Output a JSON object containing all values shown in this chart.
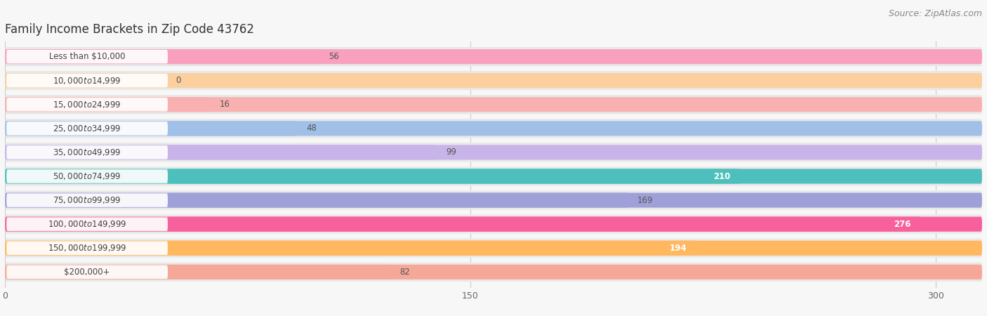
{
  "title": "Family Income Brackets in Zip Code 43762",
  "source": "Source: ZipAtlas.com",
  "categories": [
    "Less than $10,000",
    "$10,000 to $14,999",
    "$15,000 to $24,999",
    "$25,000 to $34,999",
    "$35,000 to $49,999",
    "$50,000 to $74,999",
    "$75,000 to $99,999",
    "$100,000 to $149,999",
    "$150,000 to $199,999",
    "$200,000+"
  ],
  "values": [
    56,
    0,
    16,
    48,
    99,
    210,
    169,
    276,
    194,
    82
  ],
  "bar_colors": [
    "#F9A0BE",
    "#FBCF9E",
    "#F9B0B0",
    "#A0C0E8",
    "#C8B4E8",
    "#4DBFBC",
    "#A0A0D8",
    "#F8609C",
    "#FFB860",
    "#F5A898"
  ],
  "label_colors": [
    "#555555",
    "#555555",
    "#555555",
    "#555555",
    "#555555",
    "#ffffff",
    "#555555",
    "#ffffff",
    "#ffffff",
    "#555555"
  ],
  "xlim": [
    0,
    315
  ],
  "xticks": [
    0,
    150,
    300
  ],
  "background_color": "#f7f7f7",
  "bar_bg_color": "#e8e8e8",
  "title_fontsize": 12,
  "label_fontsize": 8.5,
  "tick_fontsize": 9,
  "source_fontsize": 9
}
